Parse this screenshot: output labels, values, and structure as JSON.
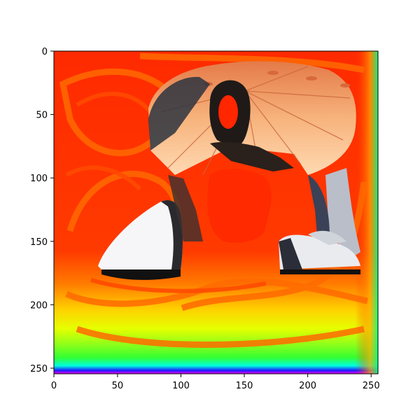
{
  "figure": {
    "content": "image",
    "description_visible": false,
    "axes": {
      "x_ticks": [
        "0",
        "50",
        "100",
        "150",
        "200",
        "250"
      ],
      "y_ticks": [
        "0",
        "50",
        "100",
        "150",
        "200",
        "250"
      ],
      "xlim": [
        0,
        255
      ],
      "ylim": [
        255,
        0
      ]
    },
    "colors": {
      "red": "#ff2200",
      "orange": "#ff6a00",
      "yellow": "#f6ff00",
      "green": "#33ff33",
      "cyan": "#00ffee",
      "blue": "#1a1aff",
      "magenta": "#ff00ff",
      "umbrella": "#f4a56a",
      "umbrella_shadow": "#e8875a",
      "skin": "#2a201c",
      "ground": "#f6f6f8"
    }
  }
}
